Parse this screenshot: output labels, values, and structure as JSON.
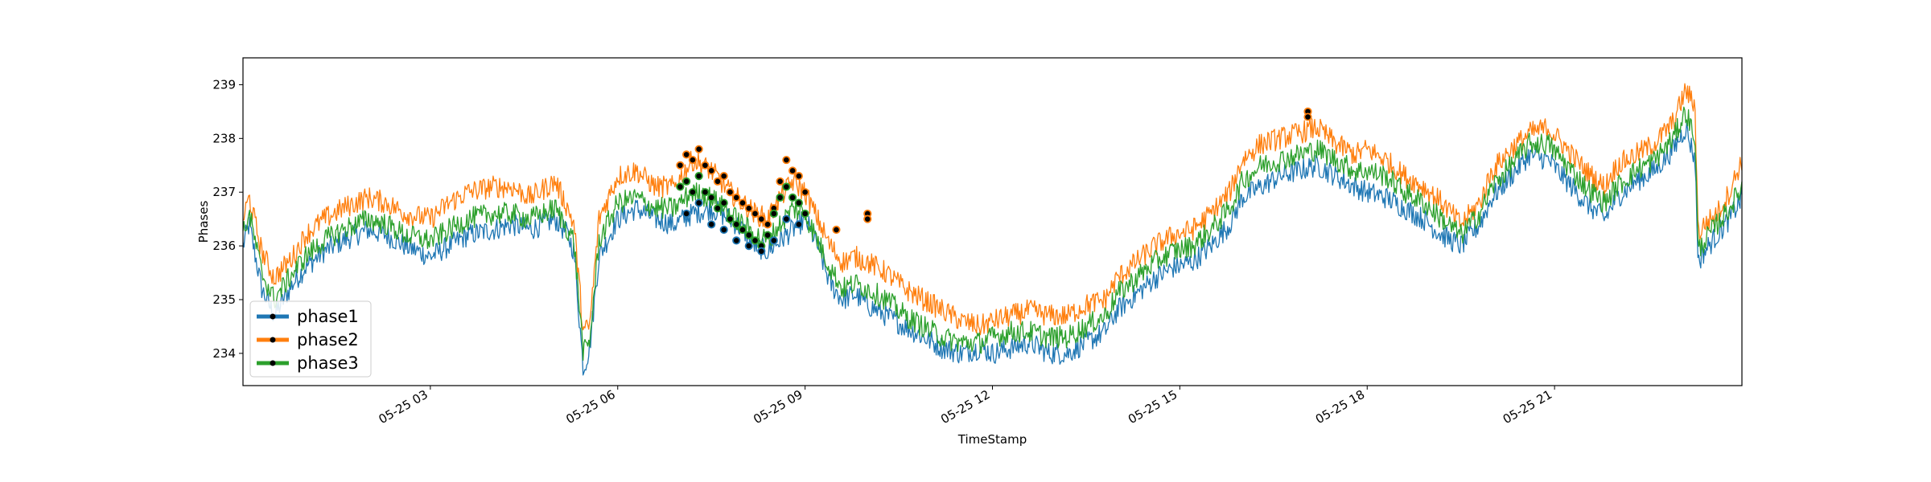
{
  "chart_data": {
    "type": "line",
    "title": "",
    "xlabel": "TimeStamp",
    "ylabel": "Phases",
    "xlim_hours": [
      0,
      24
    ],
    "ylim": [
      233.4,
      239.5
    ],
    "yticks": [
      234,
      235,
      236,
      237,
      238,
      239
    ],
    "xticks": [
      {
        "hour": 3,
        "label": "05-25 03"
      },
      {
        "hour": 6,
        "label": "05-25 06"
      },
      {
        "hour": 9,
        "label": "05-25 09"
      },
      {
        "hour": 12,
        "label": "05-25 12"
      },
      {
        "hour": 15,
        "label": "05-25 15"
      },
      {
        "hour": 18,
        "label": "05-25 18"
      },
      {
        "hour": 21,
        "label": "05-25 21"
      }
    ],
    "grid": false,
    "legend_position": "lower-left",
    "series": [
      {
        "name": "phase1",
        "color": "#1f77b4",
        "x": [
          0,
          0.1,
          0.3,
          0.5,
          0.8,
          1.0,
          1.3,
          1.6,
          2.0,
          2.3,
          2.6,
          3.0,
          3.3,
          3.6,
          4.0,
          4.3,
          4.6,
          5.0,
          5.2,
          5.3,
          5.45,
          5.55,
          5.7,
          6.0,
          6.3,
          6.6,
          6.9,
          7.2,
          7.5,
          7.8,
          8.0,
          8.2,
          8.4,
          8.6,
          8.8,
          9.0,
          9.2,
          9.4,
          9.6,
          9.8,
          10.0,
          10.3,
          10.6,
          10.9,
          11.2,
          11.5,
          11.8,
          12.0,
          12.3,
          12.6,
          12.9,
          13.2,
          13.5,
          13.8,
          14.0,
          14.3,
          14.6,
          14.9,
          15.2,
          15.5,
          15.8,
          16.0,
          16.3,
          16.6,
          16.9,
          17.2,
          17.5,
          17.8,
          18.0,
          18.3,
          18.6,
          18.9,
          19.2,
          19.5,
          19.8,
          20.0,
          20.3,
          20.6,
          20.9,
          21.2,
          21.5,
          21.8,
          22.0,
          22.3,
          22.6,
          22.9,
          23.1,
          23.25,
          23.3,
          23.4,
          23.6,
          23.8,
          24.0
        ],
        "y": [
          236.0,
          236.4,
          235.2,
          234.7,
          235.3,
          235.6,
          235.9,
          236.1,
          236.3,
          236.2,
          236.0,
          235.8,
          236.0,
          236.2,
          236.3,
          236.4,
          236.3,
          236.5,
          236.2,
          235.9,
          233.7,
          234.1,
          235.8,
          236.5,
          236.7,
          236.5,
          236.4,
          236.6,
          236.7,
          236.5,
          236.3,
          236.0,
          235.9,
          236.1,
          236.3,
          236.5,
          236.0,
          235.3,
          235.0,
          235.1,
          234.9,
          234.7,
          234.5,
          234.3,
          234.1,
          234.0,
          234.1,
          234.0,
          234.1,
          234.2,
          234.0,
          234.0,
          234.2,
          234.4,
          234.8,
          235.1,
          235.4,
          235.6,
          235.7,
          236.0,
          236.4,
          236.9,
          237.1,
          237.3,
          237.4,
          237.5,
          237.3,
          237.1,
          237.0,
          236.9,
          236.7,
          236.5,
          236.2,
          236.0,
          236.4,
          236.9,
          237.3,
          237.7,
          237.6,
          237.2,
          236.8,
          236.5,
          236.9,
          237.2,
          237.4,
          237.8,
          238.2,
          237.6,
          235.7,
          235.9,
          236.2,
          236.5,
          236.9
        ]
      },
      {
        "name": "phase2",
        "color": "#ff7f0e",
        "x": [
          0,
          0.1,
          0.3,
          0.5,
          0.8,
          1.0,
          1.3,
          1.6,
          2.0,
          2.3,
          2.6,
          3.0,
          3.3,
          3.6,
          4.0,
          4.3,
          4.6,
          5.0,
          5.2,
          5.3,
          5.45,
          5.55,
          5.7,
          6.0,
          6.3,
          6.6,
          6.9,
          7.2,
          7.5,
          7.8,
          8.0,
          8.2,
          8.4,
          8.6,
          8.8,
          9.0,
          9.2,
          9.4,
          9.6,
          9.8,
          10.0,
          10.3,
          10.6,
          10.9,
          11.2,
          11.5,
          11.8,
          12.0,
          12.3,
          12.6,
          12.9,
          13.2,
          13.5,
          13.8,
          14.0,
          14.3,
          14.6,
          14.9,
          15.2,
          15.5,
          15.8,
          16.0,
          16.3,
          16.6,
          16.9,
          17.2,
          17.5,
          17.8,
          18.0,
          18.3,
          18.6,
          18.9,
          19.2,
          19.5,
          19.8,
          20.0,
          20.3,
          20.6,
          20.9,
          21.2,
          21.5,
          21.8,
          22.0,
          22.3,
          22.6,
          22.9,
          23.1,
          23.25,
          23.3,
          23.4,
          23.6,
          23.8,
          24.0
        ],
        "y": [
          236.5,
          236.9,
          235.9,
          235.4,
          235.8,
          236.2,
          236.5,
          236.7,
          236.9,
          236.8,
          236.6,
          236.5,
          236.8,
          237.0,
          237.1,
          237.1,
          236.9,
          237.2,
          236.7,
          236.4,
          234.4,
          234.5,
          236.5,
          237.3,
          237.4,
          237.1,
          237.1,
          237.6,
          237.4,
          237.0,
          236.8,
          236.6,
          236.5,
          236.9,
          237.2,
          237.0,
          236.5,
          236.0,
          235.7,
          235.8,
          235.7,
          235.5,
          235.2,
          235.0,
          234.8,
          234.6,
          234.5,
          234.6,
          234.7,
          234.8,
          234.7,
          234.7,
          234.9,
          235.0,
          235.4,
          235.7,
          236.0,
          236.2,
          236.3,
          236.6,
          237.0,
          237.6,
          237.9,
          238.0,
          238.1,
          238.2,
          237.9,
          237.7,
          237.8,
          237.6,
          237.3,
          237.1,
          236.8,
          236.4,
          236.8,
          237.4,
          237.8,
          238.1,
          238.2,
          237.8,
          237.4,
          237.1,
          237.5,
          237.7,
          237.9,
          238.3,
          238.9,
          238.6,
          236.2,
          236.4,
          236.6,
          237.0,
          237.6
        ]
      },
      {
        "name": "phase3",
        "color": "#2ca02c",
        "x": [
          0,
          0.1,
          0.3,
          0.5,
          0.8,
          1.0,
          1.3,
          1.6,
          2.0,
          2.3,
          2.6,
          3.0,
          3.3,
          3.6,
          4.0,
          4.3,
          4.6,
          5.0,
          5.2,
          5.3,
          5.45,
          5.55,
          5.7,
          6.0,
          6.3,
          6.6,
          6.9,
          7.2,
          7.5,
          7.8,
          8.0,
          8.2,
          8.4,
          8.6,
          8.8,
          9.0,
          9.2,
          9.4,
          9.6,
          9.8,
          10.0,
          10.3,
          10.6,
          10.9,
          11.2,
          11.5,
          11.8,
          12.0,
          12.3,
          12.6,
          12.9,
          13.2,
          13.5,
          13.8,
          14.0,
          14.3,
          14.6,
          14.9,
          15.2,
          15.5,
          15.8,
          16.0,
          16.3,
          16.6,
          16.9,
          17.2,
          17.5,
          17.8,
          18.0,
          18.3,
          18.6,
          18.9,
          19.2,
          19.5,
          19.8,
          20.0,
          20.3,
          20.6,
          20.9,
          21.2,
          21.5,
          21.8,
          22.0,
          22.3,
          22.6,
          22.9,
          23.1,
          23.25,
          23.3,
          23.4,
          23.6,
          23.8,
          24.0
        ],
        "y": [
          236.2,
          236.6,
          235.5,
          235.0,
          235.5,
          235.8,
          236.1,
          236.3,
          236.5,
          236.4,
          236.2,
          236.1,
          236.3,
          236.5,
          236.6,
          236.6,
          236.5,
          236.7,
          236.3,
          236.1,
          234.0,
          234.2,
          236.1,
          236.8,
          236.9,
          236.7,
          236.7,
          237.0,
          236.9,
          236.6,
          236.4,
          236.2,
          236.1,
          236.4,
          236.7,
          236.6,
          236.1,
          235.6,
          235.2,
          235.3,
          235.2,
          235.0,
          234.7,
          234.5,
          234.3,
          234.2,
          234.2,
          234.3,
          234.4,
          234.4,
          234.3,
          234.3,
          234.5,
          234.7,
          235.1,
          235.4,
          235.7,
          235.9,
          236.0,
          236.3,
          236.7,
          237.2,
          237.5,
          237.6,
          237.7,
          237.8,
          237.6,
          237.4,
          237.4,
          237.3,
          237.0,
          236.8,
          236.5,
          236.2,
          236.6,
          237.1,
          237.5,
          237.9,
          237.9,
          237.5,
          237.1,
          236.8,
          237.1,
          237.4,
          237.6,
          238.0,
          238.5,
          238.0,
          235.9,
          236.1,
          236.4,
          236.7,
          237.1
        ]
      }
    ],
    "anomaly_markers": [
      {
        "series": "phase2",
        "x": [
          7.0,
          7.1,
          7.2,
          7.3,
          7.4,
          7.5,
          7.6,
          7.7,
          7.8,
          7.9,
          8.0,
          8.1,
          8.2,
          8.3,
          8.4,
          8.5,
          8.6,
          8.7,
          8.8,
          8.9,
          9.0,
          9.5,
          10.0,
          10.0,
          17.05,
          17.05
        ],
        "y": [
          237.5,
          237.7,
          237.6,
          237.8,
          237.5,
          237.4,
          237.2,
          237.3,
          237.0,
          236.9,
          236.8,
          236.7,
          236.6,
          236.5,
          236.4,
          236.7,
          237.2,
          237.6,
          237.4,
          237.3,
          237.0,
          236.3,
          236.6,
          236.5,
          238.5,
          238.4
        ]
      },
      {
        "series": "phase3",
        "x": [
          7.0,
          7.1,
          7.2,
          7.3,
          7.4,
          7.5,
          7.6,
          7.7,
          7.8,
          7.9,
          8.0,
          8.1,
          8.2,
          8.3,
          8.4,
          8.5,
          8.6,
          8.7,
          8.8,
          8.9,
          9.0
        ],
        "y": [
          237.1,
          237.2,
          237.0,
          237.3,
          237.0,
          236.9,
          236.7,
          236.8,
          236.5,
          236.4,
          236.3,
          236.2,
          236.1,
          236.0,
          236.2,
          236.6,
          236.9,
          237.1,
          236.9,
          236.8,
          236.6
        ]
      },
      {
        "series": "phase1",
        "x": [
          7.1,
          7.3,
          7.5,
          7.7,
          7.9,
          8.1,
          8.3,
          8.5,
          8.7,
          8.9
        ],
        "y": [
          236.6,
          236.8,
          236.4,
          236.3,
          236.1,
          236.0,
          235.9,
          236.1,
          236.5,
          236.4
        ]
      }
    ]
  }
}
